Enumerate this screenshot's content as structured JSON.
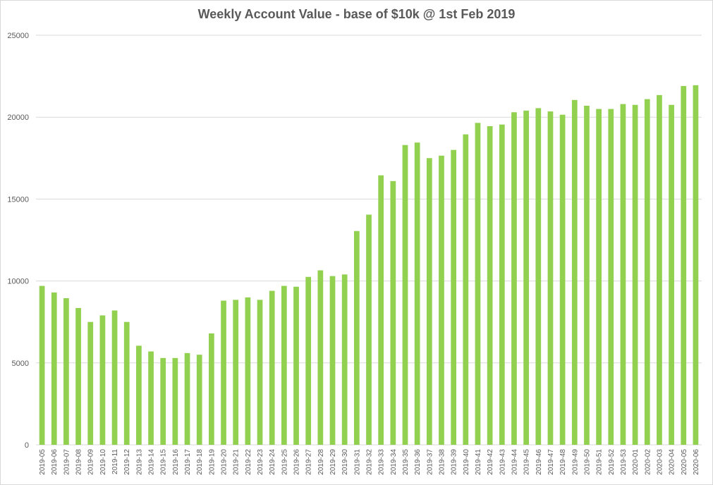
{
  "colors": {
    "bar": "#92d050",
    "grid": "#d9d9d9",
    "text": "#595959"
  },
  "chart_data": {
    "type": "bar",
    "title": "Weekly Account Value - base of $10k @ 1st Feb 2019",
    "xlabel": "",
    "ylabel": "",
    "ylim": [
      0,
      25000
    ],
    "yticks": [
      0,
      5000,
      10000,
      15000,
      20000,
      25000
    ],
    "grid": true,
    "categories": [
      "2019-05",
      "2019-06",
      "2019-07",
      "2019-08",
      "2019-09",
      "2019-10",
      "2019-11",
      "2019-12",
      "2019-13",
      "2019-14",
      "2019-15",
      "2019-16",
      "2019-17",
      "2019-18",
      "2019-19",
      "2019-20",
      "2019-21",
      "2019-22",
      "2019-23",
      "2019-24",
      "2019-25",
      "2019-26",
      "2019-27",
      "2019-28",
      "2019-29",
      "2019-30",
      "2019-31",
      "2019-32",
      "2019-33",
      "2019-34",
      "2019-35",
      "2019-36",
      "2019-37",
      "2019-38",
      "2019-39",
      "2019-40",
      "2019-41",
      "2019-42",
      "2019-43",
      "2019-44",
      "2019-45",
      "2019-46",
      "2019-47",
      "2019-48",
      "2019-49",
      "2019-50",
      "2019-51",
      "2019-52",
      "2019-53",
      "2020-01",
      "2020-02",
      "2020-03",
      "2020-04",
      "2020-05",
      "2020-06"
    ],
    "values": [
      9700,
      9300,
      8950,
      8350,
      7500,
      7900,
      8200,
      7500,
      6050,
      5700,
      5300,
      5300,
      5600,
      5500,
      6800,
      8800,
      8850,
      9000,
      8850,
      9400,
      9700,
      9650,
      10250,
      10650,
      10300,
      10400,
      13050,
      14050,
      16450,
      16100,
      18300,
      18450,
      17500,
      17650,
      18000,
      18950,
      19650,
      19450,
      19550,
      20300,
      20400,
      20550,
      20350,
      20150,
      21050,
      20700,
      20500,
      20500,
      20800,
      20750,
      21100,
      21350,
      20750,
      21900,
      21950
    ]
  }
}
